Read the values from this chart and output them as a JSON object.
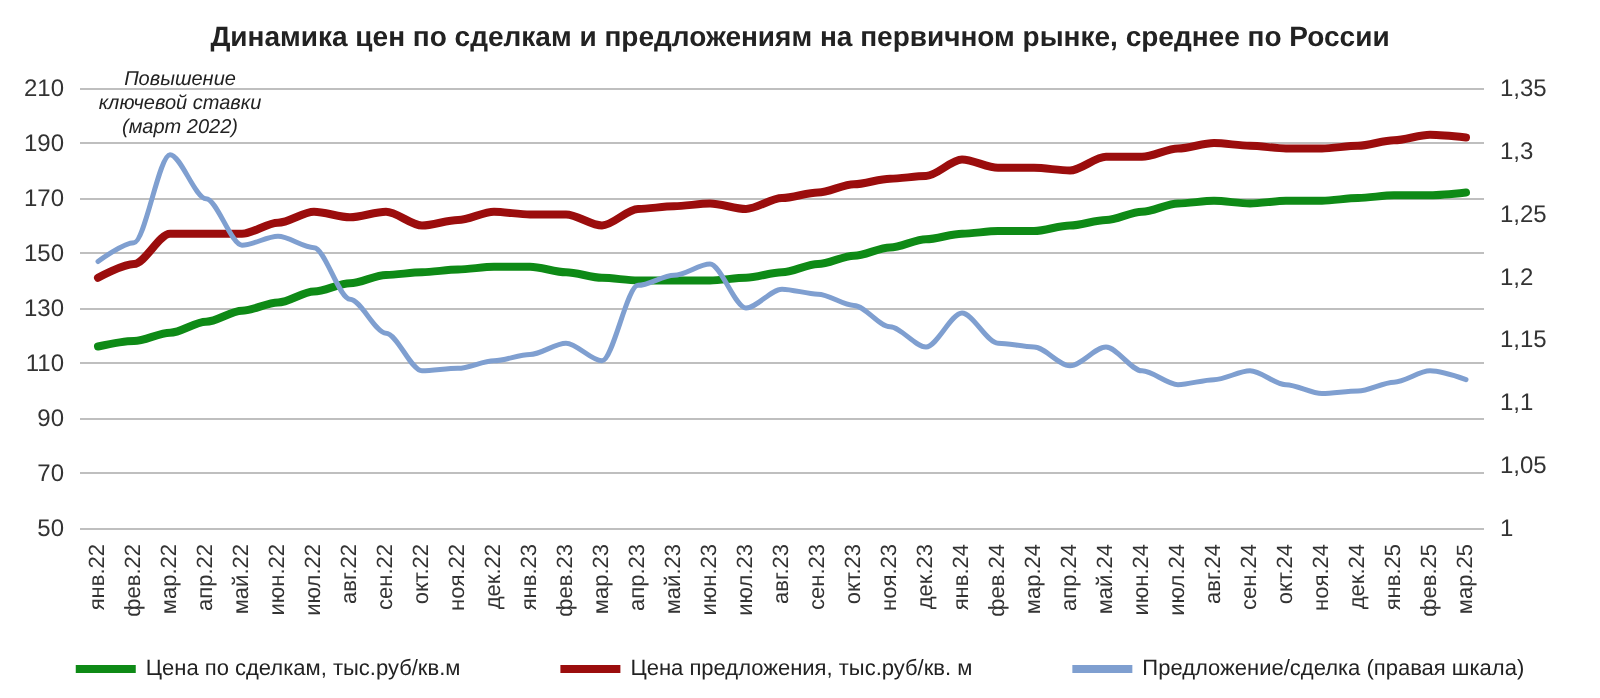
{
  "chart_data": {
    "type": "line",
    "title": "Динамика цен по сделкам и предложениям на первичном рынке, среднее по России",
    "categories": [
      "янв.22",
      "фев.22",
      "мар.22",
      "апр.22",
      "май.22",
      "июн.22",
      "июл.22",
      "авг.22",
      "сен.22",
      "окт.22",
      "ноя.22",
      "дек.22",
      "янв.23",
      "фев.23",
      "мар.23",
      "апр.23",
      "май.23",
      "июн.23",
      "июл.23",
      "авг.23",
      "сен.23",
      "окт.23",
      "ноя.23",
      "дек.23",
      "янв.24",
      "фев.24",
      "мар.24",
      "апр.24",
      "май.24",
      "июн.24",
      "июл.24",
      "авг.24",
      "сен.24",
      "окт.24",
      "ноя.24",
      "дек.24",
      "янв.25",
      "фев.25",
      "мар.25"
    ],
    "series": [
      {
        "name": "Цена по сделкам, тыс.руб/кв.м",
        "color": "#0e8a16",
        "values": [
          116,
          118,
          121,
          125,
          129,
          132,
          136,
          139,
          142,
          143,
          144,
          145,
          145,
          143,
          141,
          140,
          140,
          140,
          141,
          143,
          146,
          149,
          152,
          155,
          157,
          158,
          158,
          160,
          162,
          165,
          168,
          169,
          168,
          169,
          169,
          170,
          171,
          171,
          172
        ]
      },
      {
        "name": "Цена предложения, тыс.руб/кв. м",
        "color": "#9b0d0d",
        "values": [
          141,
          146,
          157,
          157,
          157,
          161,
          165,
          163,
          165,
          160,
          162,
          165,
          164,
          164,
          160,
          166,
          167,
          168,
          166,
          170,
          172,
          175,
          177,
          178,
          184,
          181,
          181,
          180,
          185,
          185,
          188,
          190,
          189,
          188,
          188,
          189,
          191,
          193,
          192
        ]
      },
      {
        "name": "Предложение/сделка (правая шкала)",
        "color": "#7f9fd0",
        "axis": "y2",
        "values": [
          1.212,
          1.227,
          1.297,
          1.262,
          1.225,
          1.232,
          1.223,
          1.182,
          1.155,
          1.125,
          1.127,
          1.133,
          1.138,
          1.147,
          1.133,
          1.193,
          1.201,
          1.21,
          1.175,
          1.19,
          1.186,
          1.177,
          1.16,
          1.144,
          1.171,
          1.147,
          1.144,
          1.129,
          1.144,
          1.125,
          1.114,
          1.118,
          1.125,
          1.114,
          1.107,
          1.109,
          1.116,
          1.125,
          1.118
        ]
      }
    ],
    "ylim": [
      50,
      210
    ],
    "yticks": [
      50,
      70,
      90,
      110,
      130,
      150,
      170,
      190,
      210
    ],
    "y2lim": [
      1,
      1.35
    ],
    "y2ticks": [
      1,
      {
        "value": 1.05,
        "label": "1,05"
      },
      {
        "value": 1.1,
        "label": "1,1"
      },
      {
        "value": 1.15,
        "label": "1,15"
      },
      {
        "value": 1.2,
        "label": "1,2"
      },
      {
        "value": 1.25,
        "label": "1,25"
      },
      {
        "value": 1.3,
        "label": "1,3"
      },
      {
        "value": 1.35,
        "label": "1,35"
      }
    ],
    "annotations": [
      "Повышение\nключевой ставки\n(март 2022)"
    ],
    "grid": "y",
    "legend": "bottom",
    "marker": "none",
    "line_style": "solid"
  }
}
